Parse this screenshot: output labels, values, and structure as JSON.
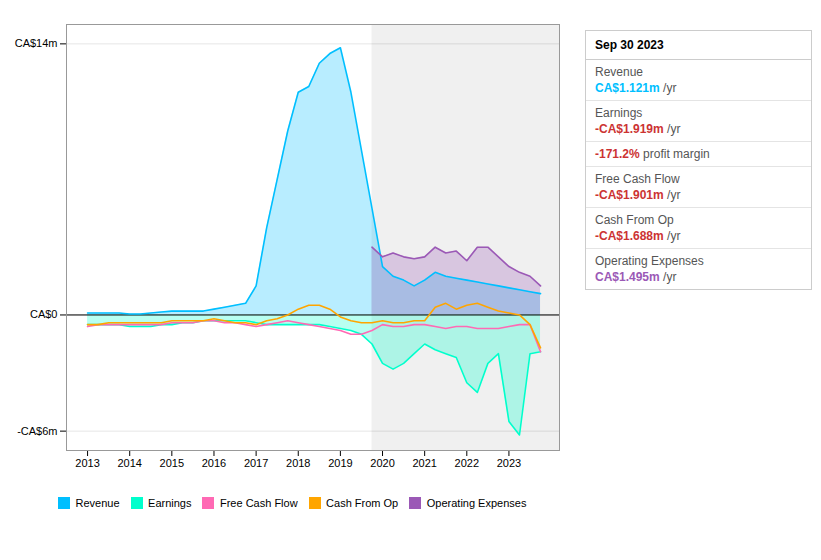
{
  "chart_data": {
    "type": "line",
    "x_highlight": [
      2019.75,
      2024.2
    ],
    "xlim": [
      2012.5,
      2024.2
    ],
    "xticks": [
      2013,
      2014,
      2015,
      2016,
      2017,
      2018,
      2019,
      2020,
      2021,
      2022,
      2023
    ],
    "ylim": [
      -7,
      15
    ],
    "yticks": [
      {
        "value": 14,
        "label": "CA$14m"
      },
      {
        "value": 0,
        "label": "CA$0"
      },
      {
        "value": -6,
        "label": "-CA$6m"
      }
    ],
    "grid": true,
    "legend": "bottom",
    "series": [
      {
        "name": "Revenue",
        "type": "area",
        "color": "#00bfff",
        "x": [
          2013.0,
          2013.25,
          2013.5,
          2013.75,
          2014.0,
          2014.25,
          2014.5,
          2014.75,
          2015.0,
          2015.25,
          2015.5,
          2015.75,
          2016.0,
          2016.25,
          2016.5,
          2016.75,
          2017.0,
          2017.25,
          2017.5,
          2017.75,
          2018.0,
          2018.25,
          2018.5,
          2018.75,
          2019.0,
          2019.25,
          2019.5,
          2019.75,
          2020.0,
          2020.25,
          2020.5,
          2020.75,
          2021.0,
          2021.25,
          2021.5,
          2021.75,
          2022.0,
          2022.25,
          2022.5,
          2022.75,
          2023.0,
          2023.25,
          2023.5,
          2023.75
        ],
        "values": [
          0.1,
          0.1,
          0.1,
          0.1,
          0.05,
          0.05,
          0.1,
          0.15,
          0.2,
          0.2,
          0.2,
          0.2,
          0.3,
          0.4,
          0.5,
          0.6,
          1.5,
          4.5,
          7.0,
          9.5,
          11.5,
          11.8,
          13.0,
          13.5,
          13.8,
          11.5,
          8.5,
          5.5,
          2.5,
          2.0,
          1.8,
          1.5,
          1.8,
          2.2,
          2.0,
          1.9,
          1.8,
          1.7,
          1.6,
          1.5,
          1.4,
          1.3,
          1.2,
          1.1
        ]
      },
      {
        "name": "Earnings",
        "type": "area",
        "color": "#00ffcc",
        "x": [
          2013.0,
          2013.25,
          2013.5,
          2013.75,
          2014.0,
          2014.25,
          2014.5,
          2014.75,
          2015.0,
          2015.25,
          2015.5,
          2015.75,
          2016.0,
          2016.25,
          2016.5,
          2016.75,
          2017.0,
          2017.25,
          2017.5,
          2017.75,
          2018.0,
          2018.25,
          2018.5,
          2018.75,
          2019.0,
          2019.25,
          2019.5,
          2019.75,
          2020.0,
          2020.25,
          2020.5,
          2020.75,
          2021.0,
          2021.25,
          2021.5,
          2021.75,
          2022.0,
          2022.25,
          2022.5,
          2022.75,
          2023.0,
          2023.25,
          2023.5,
          2023.75
        ],
        "values": [
          -0.5,
          -0.5,
          -0.5,
          -0.5,
          -0.6,
          -0.6,
          -0.6,
          -0.5,
          -0.5,
          -0.4,
          -0.4,
          -0.3,
          -0.3,
          -0.3,
          -0.3,
          -0.3,
          -0.4,
          -0.5,
          -0.5,
          -0.5,
          -0.5,
          -0.5,
          -0.5,
          -0.6,
          -0.7,
          -0.8,
          -1.0,
          -1.5,
          -2.5,
          -2.8,
          -2.5,
          -2.0,
          -1.5,
          -1.8,
          -2.0,
          -2.2,
          -3.5,
          -4.0,
          -2.5,
          -2.0,
          -5.5,
          -6.2,
          -2.0,
          -1.9
        ]
      },
      {
        "name": "Free Cash Flow",
        "type": "line",
        "color": "#ff69b4",
        "x": [
          2013.0,
          2013.25,
          2013.5,
          2013.75,
          2014.0,
          2014.25,
          2014.5,
          2014.75,
          2015.0,
          2015.25,
          2015.5,
          2015.75,
          2016.0,
          2016.25,
          2016.5,
          2016.75,
          2017.0,
          2017.25,
          2017.5,
          2017.75,
          2018.0,
          2018.25,
          2018.5,
          2018.75,
          2019.0,
          2019.25,
          2019.5,
          2019.75,
          2020.0,
          2020.25,
          2020.5,
          2020.75,
          2021.0,
          2021.25,
          2021.5,
          2021.75,
          2022.0,
          2022.25,
          2022.5,
          2022.75,
          2023.0,
          2023.25,
          2023.5,
          2023.75
        ],
        "values": [
          -0.6,
          -0.5,
          -0.5,
          -0.5,
          -0.5,
          -0.5,
          -0.5,
          -0.5,
          -0.4,
          -0.4,
          -0.4,
          -0.3,
          -0.3,
          -0.4,
          -0.4,
          -0.5,
          -0.6,
          -0.5,
          -0.4,
          -0.3,
          -0.4,
          -0.5,
          -0.6,
          -0.7,
          -0.8,
          -1.0,
          -1.0,
          -0.8,
          -0.5,
          -0.6,
          -0.6,
          -0.5,
          -0.5,
          -0.6,
          -0.7,
          -0.6,
          -0.6,
          -0.7,
          -0.7,
          -0.7,
          -0.6,
          -0.5,
          -0.5,
          -1.9
        ]
      },
      {
        "name": "Cash From Op",
        "type": "line",
        "color": "#ffa500",
        "x": [
          2013.0,
          2013.25,
          2013.5,
          2013.75,
          2014.0,
          2014.25,
          2014.5,
          2014.75,
          2015.0,
          2015.25,
          2015.5,
          2015.75,
          2016.0,
          2016.25,
          2016.5,
          2016.75,
          2017.0,
          2017.25,
          2017.5,
          2017.75,
          2018.0,
          2018.25,
          2018.5,
          2018.75,
          2019.0,
          2019.25,
          2019.5,
          2019.75,
          2020.0,
          2020.25,
          2020.5,
          2020.75,
          2021.0,
          2021.25,
          2021.5,
          2021.75,
          2022.0,
          2022.25,
          2022.5,
          2022.75,
          2023.0,
          2023.25,
          2023.5,
          2023.75
        ],
        "values": [
          -0.5,
          -0.5,
          -0.4,
          -0.4,
          -0.4,
          -0.4,
          -0.4,
          -0.4,
          -0.3,
          -0.3,
          -0.3,
          -0.3,
          -0.2,
          -0.3,
          -0.4,
          -0.4,
          -0.5,
          -0.3,
          -0.2,
          0.0,
          0.3,
          0.5,
          0.5,
          0.3,
          -0.1,
          -0.3,
          -0.4,
          -0.4,
          -0.3,
          -0.4,
          -0.4,
          -0.3,
          -0.3,
          0.4,
          0.6,
          0.3,
          0.5,
          0.6,
          0.4,
          0.2,
          0.1,
          0.0,
          -0.5,
          -1.7
        ]
      },
      {
        "name": "Operating Expenses",
        "type": "area",
        "color": "#9b59b6",
        "x": [
          2019.75,
          2020.0,
          2020.25,
          2020.5,
          2020.75,
          2021.0,
          2021.25,
          2021.5,
          2021.75,
          2022.0,
          2022.25,
          2022.5,
          2022.75,
          2023.0,
          2023.25,
          2023.5,
          2023.75
        ],
        "values": [
          3.5,
          3.0,
          3.2,
          3.0,
          2.9,
          3.0,
          3.5,
          3.2,
          3.3,
          2.8,
          3.5,
          3.5,
          3.0,
          2.5,
          2.2,
          2.0,
          1.5
        ]
      }
    ],
    "annotations": [
      {
        "title": "Sep 30 2023",
        "rows": [
          {
            "label": "Revenue",
            "text": "CA$1.121m",
            "suffix": "/yr",
            "color": "#00bfff"
          },
          {
            "label": "Earnings",
            "text": "-CA$1.919m",
            "suffix": "/yr",
            "color": "#cc3333"
          },
          {
            "text": "-171.2%",
            "suffix": "profit margin",
            "color": "#cc3333"
          },
          {
            "label": "Free Cash Flow",
            "text": "-CA$1.901m",
            "suffix": "/yr",
            "color": "#cc3333"
          },
          {
            "label": "Cash From Op",
            "text": "-CA$1.688m",
            "suffix": "/yr",
            "color": "#cc3333"
          },
          {
            "label": "Operating Expenses",
            "text": "CA$1.495m",
            "suffix": "/yr",
            "color": "#9b59b6"
          }
        ]
      }
    ]
  }
}
